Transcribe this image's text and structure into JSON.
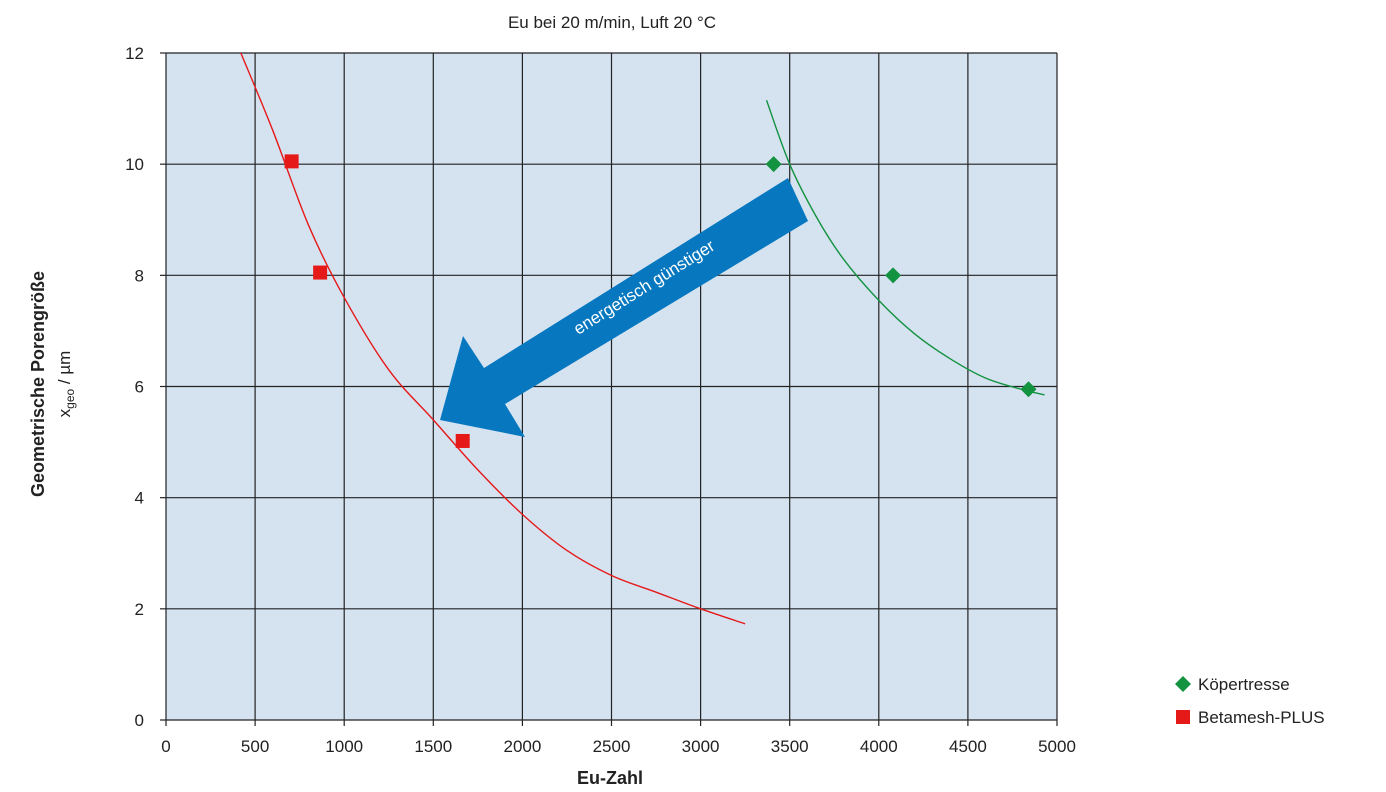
{
  "chart_data": {
    "type": "scatter",
    "title": "Eu bei 20 m/min, Luft 20 °C",
    "xlabel": "Eu-Zahl",
    "ylabel": "Geometrische Porengröße",
    "ylabel_unit": {
      "symbol": "x",
      "subscript": "geo",
      "unit": " / µm"
    },
    "xlim": [
      0,
      5000
    ],
    "ylim": [
      0,
      12
    ],
    "xticks": [
      0,
      500,
      1000,
      1500,
      2000,
      2500,
      3000,
      3500,
      4000,
      4500,
      5000
    ],
    "yticks": [
      0,
      2,
      4,
      6,
      8,
      10,
      12
    ],
    "grid": true,
    "legend_position": "bottom-right",
    "annotation": "energetisch günstiger",
    "colors": {
      "plot_bg": "#d5e3f1",
      "grid": "#222222",
      "arrow": "#0778bf"
    },
    "series": [
      {
        "name": "Köpertresse",
        "marker": "diamond",
        "color": "#13923f",
        "points": [
          [
            3410,
            10.0
          ],
          [
            4080,
            8.0
          ],
          [
            4840,
            5.95
          ]
        ],
        "fit": [
          [
            3370,
            11.15
          ],
          [
            3500,
            10.0
          ],
          [
            3650,
            9.05
          ],
          [
            3800,
            8.3
          ],
          [
            4000,
            7.55
          ],
          [
            4200,
            6.95
          ],
          [
            4400,
            6.5
          ],
          [
            4600,
            6.15
          ],
          [
            4800,
            5.95
          ],
          [
            4930,
            5.85
          ]
        ]
      },
      {
        "name": "Betamesh-PLUS",
        "marker": "square",
        "color": "#e61919",
        "points": [
          [
            705,
            10.05
          ],
          [
            865,
            8.05
          ],
          [
            1665,
            5.02
          ]
        ],
        "fit": [
          [
            420,
            12.0
          ],
          [
            600,
            10.6
          ],
          [
            800,
            8.9
          ],
          [
            1000,
            7.6
          ],
          [
            1250,
            6.3
          ],
          [
            1500,
            5.4
          ],
          [
            1750,
            4.5
          ],
          [
            2000,
            3.7
          ],
          [
            2250,
            3.05
          ],
          [
            2500,
            2.6
          ],
          [
            2750,
            2.3
          ],
          [
            3000,
            2.0
          ],
          [
            3250,
            1.73
          ]
        ]
      }
    ]
  }
}
